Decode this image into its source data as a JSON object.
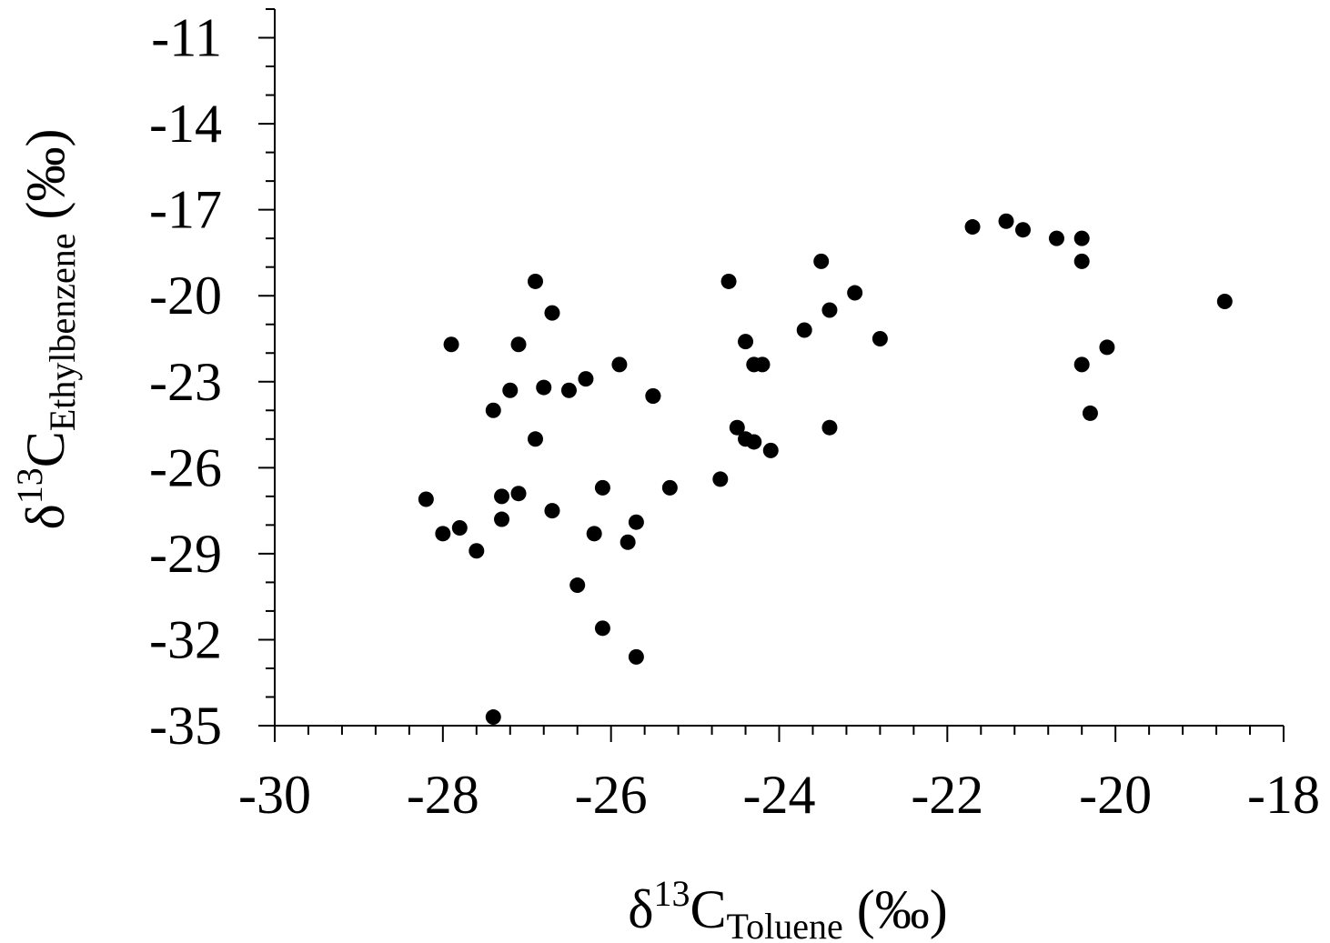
{
  "chart_data": {
    "type": "scatter",
    "xlabel": {
      "prefix": "δ",
      "sup": "13",
      "main": "C",
      "sub": "Toluene",
      "suffix": " (‰)"
    },
    "ylabel": {
      "prefix": "δ",
      "sup": "13",
      "main": "C",
      "sub": "Ethylbenzene",
      "suffix": "  (‰)"
    },
    "xlim": [
      -30,
      -18
    ],
    "ylim": [
      -35,
      -10
    ],
    "x_ticks": [
      -30,
      -28,
      -26,
      -24,
      -22,
      -20,
      -18
    ],
    "y_ticks": [
      -35,
      -32,
      -29,
      -26,
      -23,
      -20,
      -17,
      -14,
      -11
    ],
    "x_tick_labels": [
      "-30",
      "-28",
      "-26",
      "-24",
      "-22",
      "-20",
      "-18"
    ],
    "y_tick_labels": [
      "-35",
      "-32",
      "-29",
      "-26",
      "-23",
      "-20",
      "-17",
      "-14",
      "-11"
    ],
    "grid": false,
    "marker_color": "#000000",
    "points": [
      [
        -28.2,
        -27.1
      ],
      [
        -28.0,
        -28.3
      ],
      [
        -27.9,
        -21.7
      ],
      [
        -27.8,
        -28.1
      ],
      [
        -27.6,
        -28.9
      ],
      [
        -27.4,
        -24.0
      ],
      [
        -27.4,
        -34.7
      ],
      [
        -27.3,
        -27.0
      ],
      [
        -27.3,
        -27.8
      ],
      [
        -27.2,
        -23.3
      ],
      [
        -27.1,
        -21.7
      ],
      [
        -27.1,
        -26.9
      ],
      [
        -26.9,
        -19.5
      ],
      [
        -26.9,
        -25.0
      ],
      [
        -26.8,
        -23.2
      ],
      [
        -26.7,
        -27.5
      ],
      [
        -26.7,
        -20.6
      ],
      [
        -26.5,
        -23.3
      ],
      [
        -26.4,
        -30.1
      ],
      [
        -26.3,
        -22.9
      ],
      [
        -26.2,
        -28.3
      ],
      [
        -26.1,
        -26.7
      ],
      [
        -26.1,
        -31.6
      ],
      [
        -25.9,
        -22.4
      ],
      [
        -25.8,
        -28.6
      ],
      [
        -25.7,
        -27.9
      ],
      [
        -25.7,
        -32.6
      ],
      [
        -25.5,
        -23.5
      ],
      [
        -25.5,
        -23.5
      ],
      [
        -25.3,
        -26.7
      ],
      [
        -24.7,
        -26.4
      ],
      [
        -24.6,
        -19.5
      ],
      [
        -24.5,
        -24.6
      ],
      [
        -24.4,
        -25.0
      ],
      [
        -24.4,
        -21.6
      ],
      [
        -24.3,
        -22.4
      ],
      [
        -24.3,
        -25.1
      ],
      [
        -24.2,
        -22.4
      ],
      [
        -24.1,
        -25.4
      ],
      [
        -23.7,
        -21.2
      ],
      [
        -23.5,
        -18.8
      ],
      [
        -23.4,
        -20.5
      ],
      [
        -23.4,
        -24.6
      ],
      [
        -23.1,
        -19.9
      ],
      [
        -22.8,
        -21.5
      ],
      [
        -21.7,
        -17.6
      ],
      [
        -21.3,
        -17.4
      ],
      [
        -21.1,
        -17.7
      ],
      [
        -20.7,
        -18.0
      ],
      [
        -20.4,
        -18.0
      ],
      [
        -20.4,
        -18.8
      ],
      [
        -20.4,
        -22.4
      ],
      [
        -20.3,
        -24.1
      ],
      [
        -20.1,
        -21.8
      ],
      [
        -18.7,
        -20.2
      ]
    ]
  }
}
